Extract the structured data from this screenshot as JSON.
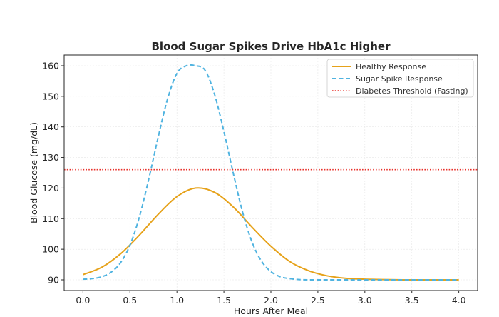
{
  "chart_data": {
    "type": "line",
    "title": "Blood Sugar Spikes Drive HbA1c Higher",
    "xlabel": "Hours After Meal",
    "ylabel": "Blood Glucose (mg/dL)",
    "xlim": [
      -0.2,
      4.2
    ],
    "ylim": [
      86.5,
      163.5
    ],
    "xticks": [
      0.0,
      0.5,
      1.0,
      1.5,
      2.0,
      2.5,
      3.0,
      3.5,
      4.0
    ],
    "xtick_labels": [
      "0.0",
      "0.5",
      "1.0",
      "1.5",
      "2.0",
      "2.5",
      "3.0",
      "3.5",
      "4.0"
    ],
    "yticks": [
      90,
      100,
      110,
      120,
      130,
      140,
      150,
      160
    ],
    "ytick_labels": [
      "90",
      "100",
      "110",
      "120",
      "130",
      "140",
      "150",
      "160"
    ],
    "grid": true,
    "legend_position": "top-right",
    "series": [
      {
        "name": "Healthy Response",
        "color": "#e6a21a",
        "style": "solid",
        "x": [
          0.0,
          0.2,
          0.4,
          0.6,
          0.8,
          1.0,
          1.2,
          1.4,
          1.6,
          1.8,
          2.0,
          2.2,
          2.4,
          2.6,
          2.8,
          3.0,
          3.2,
          3.4,
          3.6,
          3.8,
          4.0
        ],
        "y": [
          91.7,
          94.1,
          98.5,
          104.6,
          111.4,
          117.2,
          120.0,
          118.6,
          113.8,
          107.2,
          101.0,
          96.0,
          93.0,
          91.3,
          90.5,
          90.2,
          90.1,
          90.0,
          90.0,
          90.0,
          90.0
        ]
      },
      {
        "name": "Sugar Spike Response",
        "color": "#4fb3e0",
        "style": "dashed",
        "x": [
          0.0,
          0.1,
          0.2,
          0.3,
          0.4,
          0.5,
          0.6,
          0.7,
          0.8,
          0.9,
          1.0,
          1.1,
          1.2,
          1.3,
          1.4,
          1.5,
          1.6,
          1.7,
          1.8,
          1.9,
          2.0,
          2.1,
          2.2,
          2.3,
          2.4,
          2.5,
          2.6,
          2.8,
          3.0,
          3.5,
          4.0
        ],
        "y": [
          90.2,
          90.4,
          91.0,
          92.5,
          95.6,
          101.3,
          110.5,
          122.9,
          136.6,
          149.1,
          157.5,
          160.0,
          160.0,
          158.5,
          150.7,
          138.5,
          124.8,
          112.0,
          102.3,
          96.1,
          92.7,
          91.0,
          90.4,
          90.1,
          90.0,
          90.0,
          90.0,
          90.0,
          90.0,
          90.0,
          90.0
        ]
      },
      {
        "name": "Diabetes Threshold (Fasting)",
        "color": "#e8302a",
        "style": "dotted",
        "x": [
          -0.2,
          4.2
        ],
        "y": [
          126,
          126
        ]
      }
    ]
  }
}
